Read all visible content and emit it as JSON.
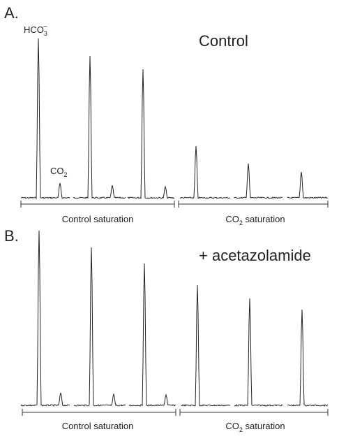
{
  "panels": [
    {
      "letter": "A.",
      "condition": "Control",
      "peak_labels": {
        "bicarbonate": {
          "base": "HCO",
          "sub": "3",
          "sup": "−"
        },
        "co2": {
          "base": "CO",
          "sub": "2"
        }
      },
      "groups": [
        {
          "label": "Control saturation"
        },
        {
          "label": {
            "base": "CO",
            "sub": "2",
            "rest": " saturation"
          }
        }
      ]
    },
    {
      "letter": "B.",
      "condition": "+ acetazolamide",
      "groups": [
        {
          "label": "Control saturation"
        },
        {
          "label": {
            "base": "CO",
            "sub": "2",
            "rest": " saturation"
          }
        }
      ]
    }
  ]
}
